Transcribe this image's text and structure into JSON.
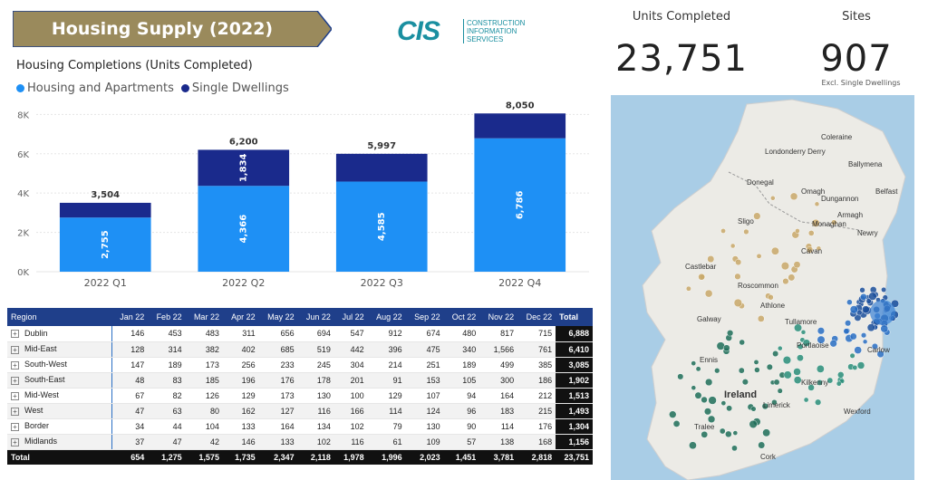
{
  "banner": {
    "title": "Housing Supply (2022)"
  },
  "logo": {
    "mark": "CIS",
    "line1": "CONSTRUCTION",
    "line2": "INFORMATION",
    "line3": "SERVICES"
  },
  "chart_title": "Housing Completions (Units Completed)",
  "legend": [
    {
      "label": "Housing and Apartments",
      "color": "#1e90f5"
    },
    {
      "label": "Single Dwellings",
      "color": "#1a2a8c"
    }
  ],
  "chart_data": {
    "type": "bar",
    "stacked": true,
    "categories": [
      "2022 Q1",
      "2022 Q2",
      "2022 Q3",
      "2022 Q4"
    ],
    "series": [
      {
        "name": "Housing and Apartments",
        "color": "#1e90f5",
        "values": [
          2755,
          4366,
          4585,
          6786
        ]
      },
      {
        "name": "Single Dwellings",
        "color": "#1a2a8c",
        "values": [
          749,
          1834,
          1412,
          1264
        ]
      }
    ],
    "totals": [
      3504,
      6200,
      5997,
      8050
    ],
    "totals_labels": [
      "3,504",
      "6,200",
      "5,997",
      "8,050"
    ],
    "housing_labels": [
      "2,755",
      "4,366",
      "4,585",
      "6,786"
    ],
    "single_labels": [
      "",
      "1,834",
      "",
      ""
    ],
    "yticks": [
      0,
      2000,
      4000,
      6000,
      8000
    ],
    "ytick_labels": [
      "0K",
      "2K",
      "4K",
      "6K",
      "8K"
    ],
    "ylim": [
      0,
      8200
    ]
  },
  "kpis": {
    "units_label": "Units Completed",
    "units_value": "23,751",
    "sites_label": "Sites",
    "sites_value": "907",
    "sites_note": "Excl. Single Dwellings"
  },
  "map": {
    "labels": [
      "Coleraine",
      "Londonderry Derry",
      "Ballymena",
      "Donegal",
      "Omagh",
      "Dungannon",
      "Belfast",
      "Armagh",
      "Monaghan",
      "Sligo",
      "Newry",
      "Cavan",
      "Castlebar",
      "Roscommon",
      "Athlone",
      "Galway",
      "Tullamore",
      "Portlaoise",
      "Carlow",
      "Ennis",
      "Kilkenny",
      "Limerick",
      "Ireland",
      "Tralee",
      "Wexford",
      "Cork"
    ]
  },
  "table": {
    "headers": [
      "Region",
      "Jan 22",
      "Feb 22",
      "Mar 22",
      "Apr 22",
      "May 22",
      "Jun 22",
      "Jul 22",
      "Aug 22",
      "Sep 22",
      "Oct 22",
      "Nov 22",
      "Dec 22",
      "Total"
    ],
    "rows": [
      {
        "region": "Dublin",
        "values": [
          "146",
          "453",
          "483",
          "311",
          "656",
          "694",
          "547",
          "912",
          "674",
          "480",
          "817",
          "715"
        ],
        "total": "6,888"
      },
      {
        "region": "Mid-East",
        "values": [
          "128",
          "314",
          "382",
          "402",
          "685",
          "519",
          "442",
          "396",
          "475",
          "340",
          "1,566",
          "761"
        ],
        "total": "6,410"
      },
      {
        "region": "South-West",
        "values": [
          "147",
          "189",
          "173",
          "256",
          "233",
          "245",
          "304",
          "214",
          "251",
          "189",
          "499",
          "385"
        ],
        "total": "3,085"
      },
      {
        "region": "South-East",
        "values": [
          "48",
          "83",
          "185",
          "196",
          "176",
          "178",
          "201",
          "91",
          "153",
          "105",
          "300",
          "186"
        ],
        "total": "1,902"
      },
      {
        "region": "Mid-West",
        "values": [
          "67",
          "82",
          "126",
          "129",
          "173",
          "130",
          "100",
          "129",
          "107",
          "94",
          "164",
          "212"
        ],
        "total": "1,513"
      },
      {
        "region": "West",
        "values": [
          "47",
          "63",
          "80",
          "162",
          "127",
          "116",
          "166",
          "114",
          "124",
          "96",
          "183",
          "215"
        ],
        "total": "1,493"
      },
      {
        "region": "Border",
        "values": [
          "34",
          "44",
          "104",
          "133",
          "164",
          "134",
          "102",
          "79",
          "130",
          "90",
          "114",
          "176"
        ],
        "total": "1,304"
      },
      {
        "region": "Midlands",
        "values": [
          "37",
          "47",
          "42",
          "146",
          "133",
          "102",
          "116",
          "61",
          "109",
          "57",
          "138",
          "168"
        ],
        "total": "1,156"
      }
    ],
    "footer": {
      "label": "Total",
      "values": [
        "654",
        "1,275",
        "1,575",
        "1,735",
        "2,347",
        "2,118",
        "1,978",
        "1,996",
        "2,023",
        "1,451",
        "3,781",
        "2,818"
      ],
      "total": "23,751"
    },
    "expander_glyph": "+"
  }
}
